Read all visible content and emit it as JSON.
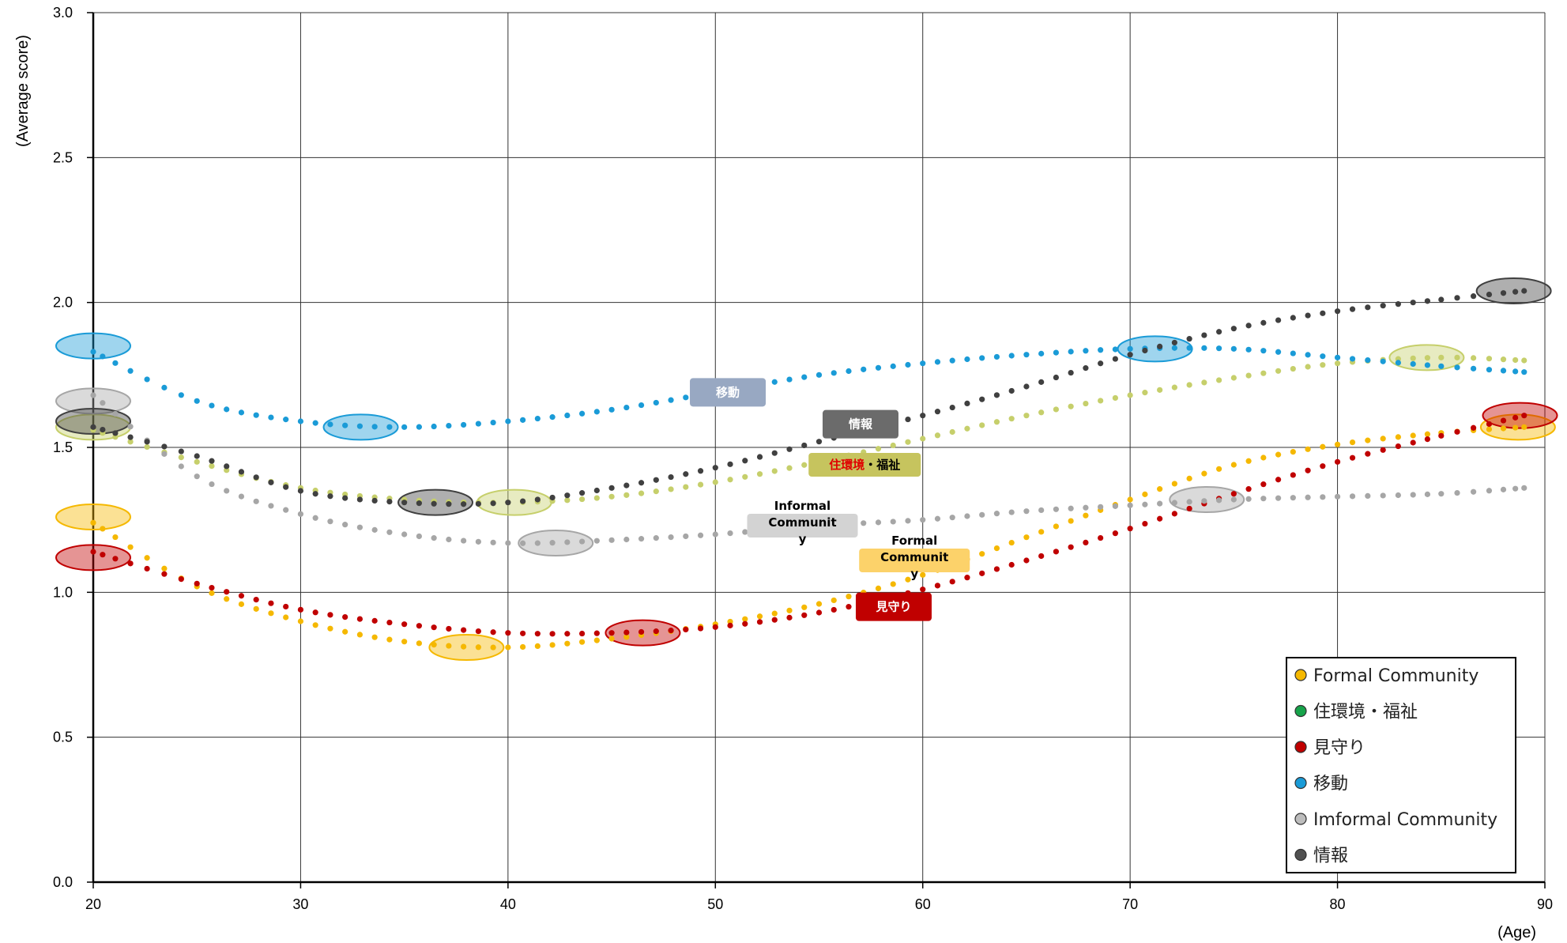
{
  "chart_data": {
    "type": "scatter",
    "xlabel": "(Age)",
    "ylabel": "(Average score)",
    "xlim": [
      20,
      90
    ],
    "ylim": [
      0,
      3.0
    ],
    "x_ticks": [
      "20",
      "30",
      "40",
      "50",
      "60",
      "70",
      "80",
      "90"
    ],
    "y_ticks": [
      "0.0",
      "0.5",
      "1.0",
      "1.5",
      "2.0",
      "2.5",
      "3.0"
    ],
    "grid": true,
    "legend_position": "bottom-right",
    "legend": [
      {
        "label": "Formal Community",
        "color": "#f5b800"
      },
      {
        "label": "住環境・福祉",
        "color": "#16a34a"
      },
      {
        "label": "見守り",
        "color": "#c00000"
      },
      {
        "label": "移動",
        "color": "#1a9bd7"
      },
      {
        "label": "Imformal Community",
        "color": "#bdbdbd"
      },
      {
        "label": "情報",
        "color": "#505050"
      }
    ],
    "series": [
      {
        "key": "formal",
        "color": "#f5b800",
        "points": [
          [
            20,
            1.24
          ],
          [
            25,
            1.02
          ],
          [
            30,
            0.9
          ],
          [
            35,
            0.83
          ],
          [
            40,
            0.81
          ],
          [
            45,
            0.84
          ],
          [
            50,
            0.89
          ],
          [
            55,
            0.96
          ],
          [
            60,
            1.06
          ],
          [
            65,
            1.19
          ],
          [
            70,
            1.32
          ],
          [
            75,
            1.44
          ],
          [
            80,
            1.51
          ],
          [
            85,
            1.55
          ],
          [
            89,
            1.57
          ]
        ],
        "highlights": [
          [
            20,
            1.26
          ],
          [
            38,
            0.81
          ],
          [
            88.7,
            1.57
          ]
        ]
      },
      {
        "key": "housing",
        "color": "#c6cf6b",
        "points": [
          [
            20,
            1.56
          ],
          [
            25,
            1.45
          ],
          [
            30,
            1.36
          ],
          [
            35,
            1.32
          ],
          [
            40,
            1.31
          ],
          [
            45,
            1.33
          ],
          [
            50,
            1.38
          ],
          [
            55,
            1.45
          ],
          [
            60,
            1.53
          ],
          [
            65,
            1.61
          ],
          [
            70,
            1.68
          ],
          [
            75,
            1.74
          ],
          [
            80,
            1.79
          ],
          [
            85,
            1.81
          ],
          [
            89,
            1.8
          ]
        ],
        "highlights": [
          [
            20,
            1.57
          ],
          [
            40.3,
            1.31
          ],
          [
            84.3,
            1.81
          ]
        ]
      },
      {
        "key": "watching",
        "color": "#c00000",
        "points": [
          [
            20,
            1.14
          ],
          [
            25,
            1.03
          ],
          [
            30,
            0.94
          ],
          [
            35,
            0.89
          ],
          [
            40,
            0.86
          ],
          [
            45,
            0.86
          ],
          [
            50,
            0.88
          ],
          [
            55,
            0.93
          ],
          [
            60,
            1.01
          ],
          [
            65,
            1.11
          ],
          [
            70,
            1.22
          ],
          [
            75,
            1.34
          ],
          [
            80,
            1.45
          ],
          [
            85,
            1.54
          ],
          [
            89,
            1.61
          ]
        ],
        "highlights": [
          [
            20,
            1.12
          ],
          [
            46.5,
            0.86
          ],
          [
            88.8,
            1.61
          ]
        ]
      },
      {
        "key": "mobility",
        "color": "#1a9bd7",
        "points": [
          [
            20,
            1.83
          ],
          [
            25,
            1.66
          ],
          [
            30,
            1.59
          ],
          [
            35,
            1.57
          ],
          [
            40,
            1.59
          ],
          [
            45,
            1.63
          ],
          [
            50,
            1.69
          ],
          [
            55,
            1.75
          ],
          [
            60,
            1.79
          ],
          [
            65,
            1.82
          ],
          [
            70,
            1.84
          ],
          [
            75,
            1.84
          ],
          [
            80,
            1.81
          ],
          [
            85,
            1.78
          ],
          [
            89,
            1.76
          ]
        ],
        "highlights": [
          [
            20,
            1.85
          ],
          [
            32.9,
            1.57
          ],
          [
            71.2,
            1.84
          ]
        ]
      },
      {
        "key": "informal",
        "color": "#a6a6a6",
        "points": [
          [
            20,
            1.68
          ],
          [
            25,
            1.4
          ],
          [
            30,
            1.27
          ],
          [
            35,
            1.2
          ],
          [
            40,
            1.17
          ],
          [
            45,
            1.18
          ],
          [
            50,
            1.2
          ],
          [
            55,
            1.23
          ],
          [
            60,
            1.25
          ],
          [
            65,
            1.28
          ],
          [
            70,
            1.3
          ],
          [
            75,
            1.32
          ],
          [
            80,
            1.33
          ],
          [
            85,
            1.34
          ],
          [
            89,
            1.36
          ]
        ],
        "highlights": [
          [
            20,
            1.66
          ],
          [
            42.3,
            1.17
          ],
          [
            73.7,
            1.32
          ]
        ]
      },
      {
        "key": "info",
        "color": "#404040",
        "points": [
          [
            20,
            1.57
          ],
          [
            25,
            1.47
          ],
          [
            30,
            1.35
          ],
          [
            35,
            1.31
          ],
          [
            40,
            1.31
          ],
          [
            45,
            1.36
          ],
          [
            50,
            1.43
          ],
          [
            55,
            1.52
          ],
          [
            60,
            1.61
          ],
          [
            65,
            1.71
          ],
          [
            70,
            1.82
          ],
          [
            75,
            1.91
          ],
          [
            80,
            1.97
          ],
          [
            85,
            2.01
          ],
          [
            89,
            2.04
          ]
        ],
        "highlights": [
          [
            20,
            1.59
          ],
          [
            36.5,
            1.31
          ],
          [
            88.5,
            2.04
          ]
        ]
      }
    ],
    "annotations": [
      {
        "text": "移動",
        "x": 50.6,
        "y": 1.69,
        "bg": "#98a8c2",
        "color": "#ffffff"
      },
      {
        "text": "情報",
        "x": 57.0,
        "y": 1.58,
        "bg": "#6b6b6b",
        "color": "#ffffff"
      },
      {
        "text_parts": [
          {
            "t": "住環境",
            "color": "#e00000"
          },
          {
            "t": "・福祉",
            "color": "#000000"
          }
        ],
        "x": 57.2,
        "y": 1.44,
        "bg": "#c6c45e"
      },
      {
        "text": "Informal\nCommunit\ny",
        "x": 54.2,
        "y": 1.23,
        "bg": "#d3d3d3",
        "color": "#000000"
      },
      {
        "text": "Formal\nCommunit\ny",
        "x": 59.6,
        "y": 1.11,
        "bg": "#fcd26a",
        "color": "#000000"
      },
      {
        "text": "見守り",
        "x": 58.6,
        "y": 0.95,
        "bg": "#c00000",
        "color": "#ffffff"
      }
    ]
  }
}
